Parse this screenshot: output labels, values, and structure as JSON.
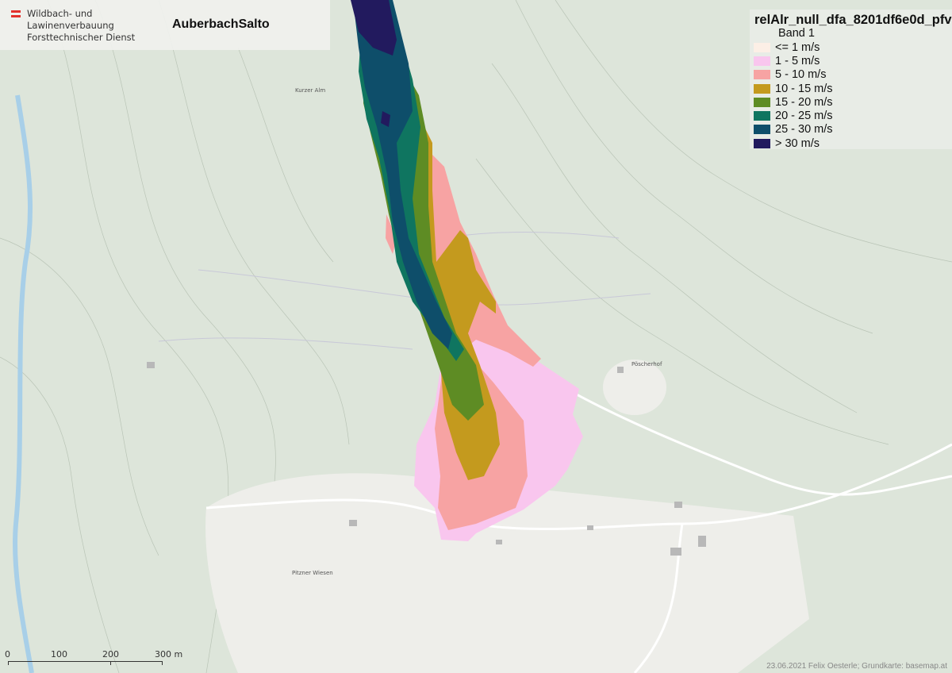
{
  "header": {
    "org_lines": [
      "Wildbach- und",
      "Lawinenverbauung",
      "Forsttechnischer Dienst"
    ],
    "title": "AuberbachSalto"
  },
  "legend": {
    "title": "relAlr_null_dfa_8201df6e0d_pfv",
    "band": "Band 1",
    "items": [
      {
        "label": "<= 1 m/s",
        "color": "#fcefe6"
      },
      {
        "label": "1 - 5 m/s",
        "color": "#f9c6ee"
      },
      {
        "label": "5 - 10 m/s",
        "color": "#f7a3a3"
      },
      {
        "label": "10 - 15 m/s",
        "color": "#c49a1e"
      },
      {
        "label": "15 - 20 m/s",
        "color": "#5e8c24"
      },
      {
        "label": "20 - 25 m/s",
        "color": "#0f7560"
      },
      {
        "label": "25 - 30 m/s",
        "color": "#0e4e6a"
      },
      {
        "label": "> 30 m/s",
        "color": "#221a5e"
      }
    ]
  },
  "scale_bar": {
    "labels": [
      "0",
      "100",
      "200",
      "300 m"
    ]
  },
  "places": [
    "Kurzer Alm",
    "Pöscherhof",
    "Pitzner Wiesen"
  ],
  "credit": "23.06.2021 Felix Oesterle; Grundkarte: basemap.at"
}
